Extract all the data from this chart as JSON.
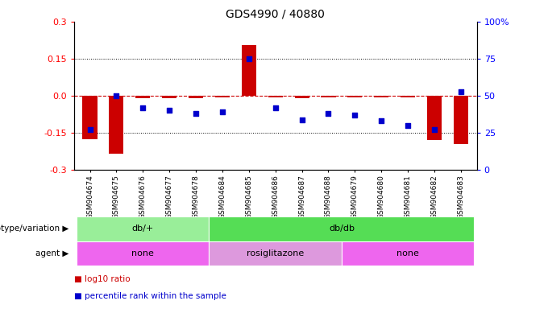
{
  "title": "GDS4990 / 40880",
  "samples": [
    "GSM904674",
    "GSM904675",
    "GSM904676",
    "GSM904677",
    "GSM904678",
    "GSM904684",
    "GSM904685",
    "GSM904686",
    "GSM904687",
    "GSM904688",
    "GSM904679",
    "GSM904680",
    "GSM904681",
    "GSM904682",
    "GSM904683"
  ],
  "log10_ratio": [
    -0.175,
    -0.235,
    -0.01,
    -0.01,
    -0.01,
    -0.005,
    0.205,
    -0.005,
    -0.01,
    -0.005,
    -0.005,
    -0.005,
    -0.005,
    -0.18,
    -0.195
  ],
  "percentile": [
    27,
    50,
    42,
    40,
    38,
    39,
    75,
    42,
    34,
    38,
    37,
    33,
    30,
    27,
    53
  ],
  "ylim": [
    -0.3,
    0.3
  ],
  "yticks": [
    -0.3,
    -0.15,
    0.0,
    0.15,
    0.3
  ],
  "right_yticks": [
    0,
    25,
    50,
    75,
    100
  ],
  "bar_color": "#cc0000",
  "dot_color": "#0000cc",
  "hline_color": "#cc0000",
  "dotted_color": "#000000",
  "bg_color": "#ffffff",
  "genotype_groups": [
    {
      "label": "db/+",
      "start": 0,
      "end": 4,
      "color": "#99ee99"
    },
    {
      "label": "db/db",
      "start": 5,
      "end": 14,
      "color": "#55dd55"
    }
  ],
  "agent_groups": [
    {
      "label": "none",
      "start": 0,
      "end": 4,
      "color": "#ee66ee"
    },
    {
      "label": "rosiglitazone",
      "start": 5,
      "end": 9,
      "color": "#dd99dd"
    },
    {
      "label": "none",
      "start": 10,
      "end": 14,
      "color": "#ee66ee"
    }
  ],
  "legend_items": [
    {
      "color": "#cc0000",
      "label": "log10 ratio"
    },
    {
      "color": "#0000cc",
      "label": "percentile rank within the sample"
    }
  ]
}
